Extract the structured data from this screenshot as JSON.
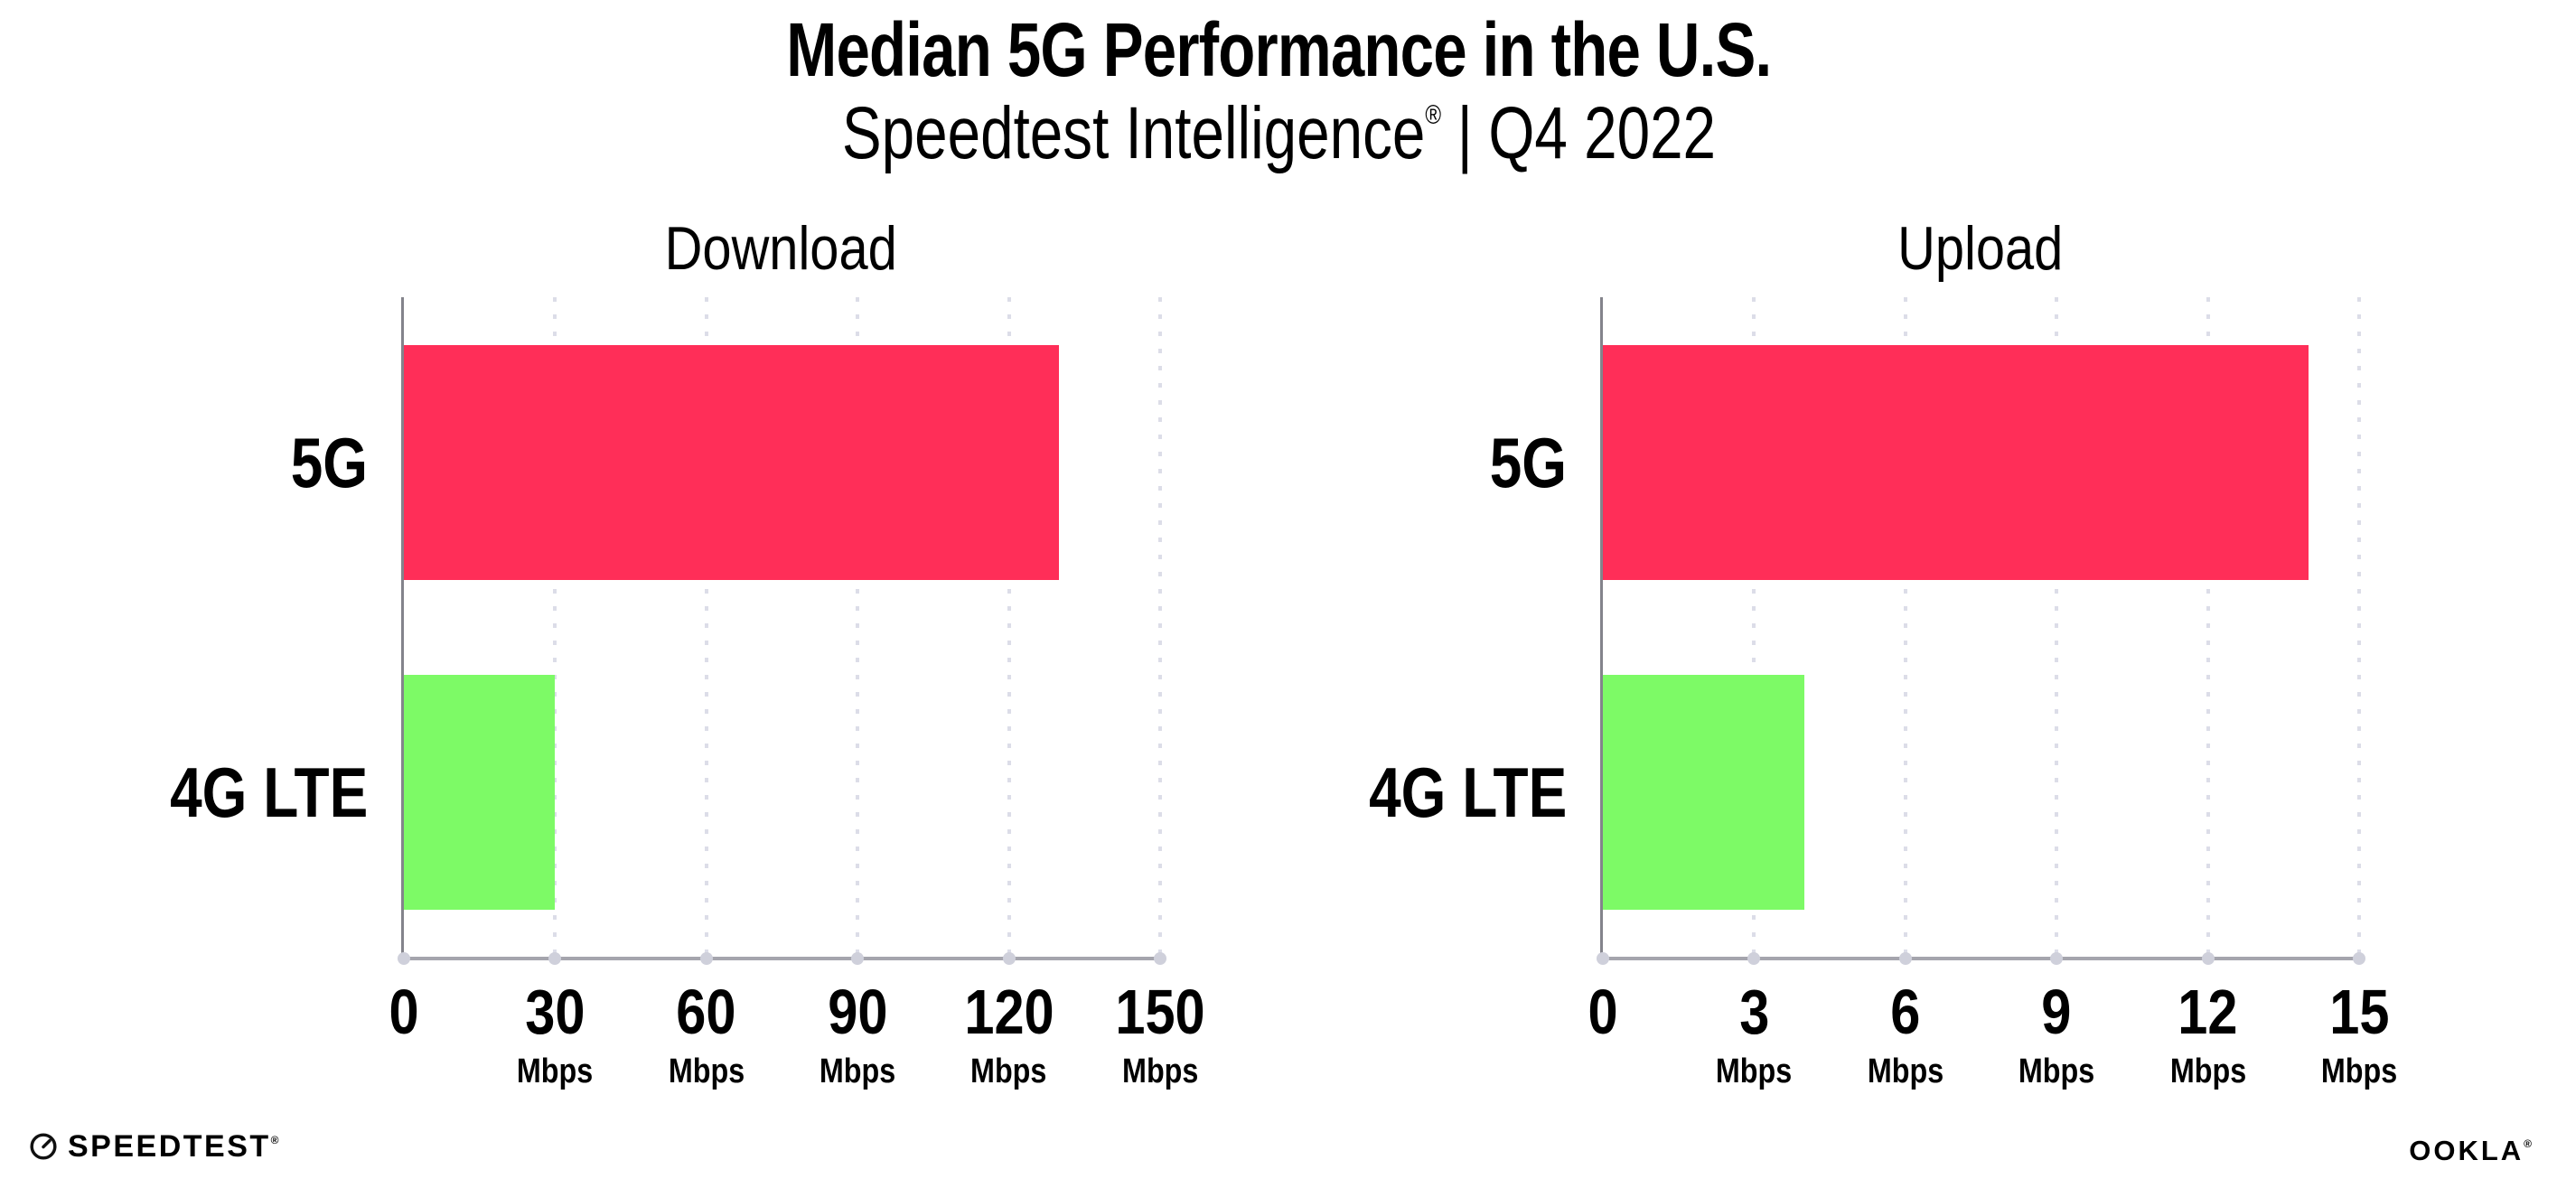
{
  "header": {
    "title": "Median 5G Performance in the U.S.",
    "subtitle_brand": "Speedtest Intelligence",
    "subtitle_reg": "®",
    "subtitle_sep": "|",
    "subtitle_period": "Q4 2022"
  },
  "footer": {
    "speedtest_label": "SPEEDTEST",
    "speedtest_reg": "®",
    "ookla_label": "OOKLA",
    "ookla_reg": "®"
  },
  "colors": {
    "background": "#ffffff",
    "text": "#000000",
    "bar_5g": "#ff2e58",
    "bar_4g_lte": "#7dfa66",
    "gridline": "#dcdde8",
    "axis_spine": "#8f8f97",
    "axis_dot": "#cfd0db"
  },
  "chart_data": [
    {
      "type": "bar",
      "orientation": "horizontal",
      "title": "Download",
      "categories": [
        "5G",
        "4G LTE"
      ],
      "values": [
        130,
        30
      ],
      "unit": "Mbps",
      "xlim": [
        0,
        150
      ],
      "xticks": [
        0,
        30,
        60,
        90,
        120,
        150
      ],
      "grid": "dotted-vertical",
      "legend": "none",
      "bar_colors": [
        "#ff2e58",
        "#7dfa66"
      ]
    },
    {
      "type": "bar",
      "orientation": "horizontal",
      "title": "Upload",
      "categories": [
        "5G",
        "4G LTE"
      ],
      "values": [
        14,
        4
      ],
      "unit": "Mbps",
      "xlim": [
        0,
        15
      ],
      "xticks": [
        0,
        3,
        6,
        9,
        12,
        15
      ],
      "grid": "dotted-vertical",
      "legend": "none",
      "bar_colors": [
        "#ff2e58",
        "#7dfa66"
      ]
    }
  ]
}
